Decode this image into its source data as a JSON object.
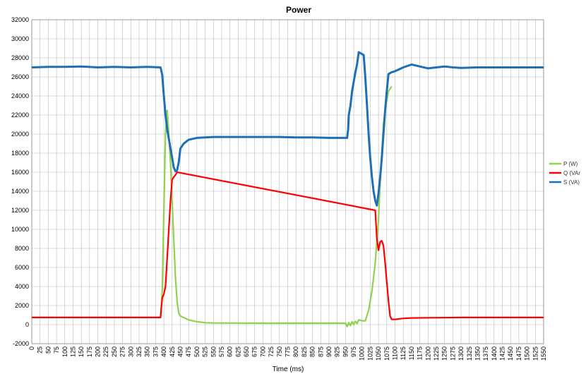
{
  "chart_data": {
    "type": "line",
    "title": "Power",
    "xlabel": "Time (ms)",
    "ylabel": "",
    "xlim": [
      0,
      1550
    ],
    "ylim": [
      -2000,
      32000
    ],
    "x_tick_step": 25,
    "y_tick_step": 2000,
    "grid": true,
    "legend_position": "right",
    "series": [
      {
        "name": "P (W)",
        "color": "#92d050",
        "points": [
          [
            0,
            750
          ],
          [
            100,
            750
          ],
          [
            200,
            750
          ],
          [
            300,
            750
          ],
          [
            390,
            750
          ],
          [
            395,
            3500
          ],
          [
            400,
            12000
          ],
          [
            405,
            20000
          ],
          [
            410,
            22500
          ],
          [
            415,
            20000
          ],
          [
            420,
            17000
          ],
          [
            425,
            13000
          ],
          [
            430,
            9000
          ],
          [
            435,
            5000
          ],
          [
            440,
            2500
          ],
          [
            445,
            1200
          ],
          [
            450,
            900
          ],
          [
            475,
            500
          ],
          [
            500,
            300
          ],
          [
            525,
            200
          ],
          [
            550,
            170
          ],
          [
            600,
            160
          ],
          [
            700,
            150
          ],
          [
            800,
            150
          ],
          [
            900,
            150
          ],
          [
            950,
            150
          ],
          [
            955,
            -200
          ],
          [
            960,
            200
          ],
          [
            965,
            -100
          ],
          [
            970,
            300
          ],
          [
            975,
            0
          ],
          [
            980,
            350
          ],
          [
            985,
            100
          ],
          [
            990,
            500
          ],
          [
            1000,
            400
          ],
          [
            1010,
            400
          ],
          [
            1020,
            1500
          ],
          [
            1030,
            3500
          ],
          [
            1040,
            6500
          ],
          [
            1050,
            11000
          ],
          [
            1055,
            15000
          ],
          [
            1060,
            18000
          ],
          [
            1065,
            21000
          ],
          [
            1070,
            22500
          ],
          [
            1075,
            23500
          ],
          [
            1080,
            24500
          ],
          [
            1090,
            25000
          ]
        ]
      },
      {
        "name": "Q (VAr",
        "color": "#ff0000",
        "points": [
          [
            0,
            750
          ],
          [
            100,
            750
          ],
          [
            200,
            750
          ],
          [
            300,
            750
          ],
          [
            390,
            750
          ],
          [
            395,
            2800
          ],
          [
            400,
            3200
          ],
          [
            405,
            4000
          ],
          [
            410,
            7000
          ],
          [
            415,
            10000
          ],
          [
            420,
            13000
          ],
          [
            425,
            15200
          ],
          [
            430,
            15500
          ],
          [
            435,
            15700
          ],
          [
            440,
            16000
          ],
          [
            1040,
            12000
          ],
          [
            1045,
            9000
          ],
          [
            1050,
            7800
          ],
          [
            1055,
            8700
          ],
          [
            1060,
            8800
          ],
          [
            1065,
            8300
          ],
          [
            1070,
            6500
          ],
          [
            1075,
            4500
          ],
          [
            1080,
            2500
          ],
          [
            1085,
            900
          ],
          [
            1090,
            550
          ],
          [
            1100,
            550
          ],
          [
            1125,
            650
          ],
          [
            1150,
            700
          ],
          [
            1200,
            720
          ],
          [
            1300,
            750
          ],
          [
            1400,
            750
          ],
          [
            1500,
            750
          ],
          [
            1550,
            750
          ]
        ]
      },
      {
        "name": "S (VA)",
        "color": "#1f6fb4",
        "points": [
          [
            0,
            27000
          ],
          [
            50,
            27050
          ],
          [
            100,
            27050
          ],
          [
            150,
            27100
          ],
          [
            200,
            27000
          ],
          [
            250,
            27050
          ],
          [
            300,
            27000
          ],
          [
            350,
            27050
          ],
          [
            390,
            27000
          ],
          [
            395,
            26200
          ],
          [
            400,
            24000
          ],
          [
            405,
            22000
          ],
          [
            410,
            20500
          ],
          [
            415,
            19500
          ],
          [
            420,
            18500
          ],
          [
            425,
            17500
          ],
          [
            430,
            16500
          ],
          [
            435,
            16100
          ],
          [
            440,
            16200
          ],
          [
            445,
            17000
          ],
          [
            450,
            18500
          ],
          [
            460,
            19000
          ],
          [
            475,
            19400
          ],
          [
            500,
            19600
          ],
          [
            550,
            19700
          ],
          [
            600,
            19700
          ],
          [
            700,
            19700
          ],
          [
            750,
            19700
          ],
          [
            800,
            19650
          ],
          [
            850,
            19650
          ],
          [
            900,
            19600
          ],
          [
            950,
            19600
          ],
          [
            955,
            19600
          ],
          [
            958,
            20500
          ],
          [
            960,
            22000
          ],
          [
            965,
            23000
          ],
          [
            970,
            24500
          ],
          [
            975,
            25500
          ],
          [
            980,
            26500
          ],
          [
            985,
            27300
          ],
          [
            990,
            28600
          ],
          [
            995,
            28500
          ],
          [
            1000,
            28400
          ],
          [
            1005,
            28300
          ],
          [
            1010,
            26000
          ],
          [
            1015,
            23000
          ],
          [
            1020,
            20000
          ],
          [
            1025,
            17500
          ],
          [
            1030,
            15500
          ],
          [
            1035,
            14000
          ],
          [
            1040,
            13000
          ],
          [
            1045,
            12500
          ],
          [
            1050,
            13800
          ],
          [
            1055,
            15500
          ],
          [
            1060,
            17500
          ],
          [
            1065,
            20000
          ],
          [
            1070,
            22500
          ],
          [
            1075,
            24500
          ],
          [
            1080,
            26300
          ],
          [
            1090,
            26500
          ],
          [
            1100,
            26600
          ],
          [
            1125,
            27000
          ],
          [
            1150,
            27300
          ],
          [
            1175,
            27100
          ],
          [
            1200,
            26900
          ],
          [
            1225,
            27000
          ],
          [
            1250,
            27100
          ],
          [
            1275,
            27000
          ],
          [
            1300,
            26950
          ],
          [
            1350,
            27000
          ],
          [
            1400,
            27000
          ],
          [
            1450,
            27000
          ],
          [
            1500,
            27000
          ],
          [
            1550,
            27000
          ]
        ]
      }
    ]
  }
}
